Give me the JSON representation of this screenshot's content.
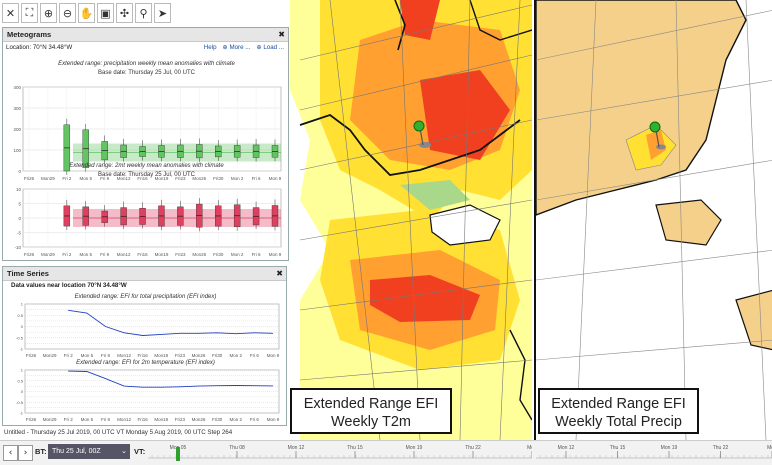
{
  "toolbar": {
    "icons": [
      "close-icon",
      "fullscreen-icon",
      "zoom-in-icon",
      "zoom-out-icon",
      "pan-hand-icon",
      "layers-icon",
      "move-icon",
      "pin-icon",
      "pointer-icon"
    ],
    "glyphs": [
      "✕",
      "⛶",
      "⊕",
      "⊖",
      "✋",
      "▣",
      "✣",
      "⚲",
      "➤"
    ]
  },
  "meteograms": {
    "title": "Meteograms",
    "location": "Location: 70°N 34.48°W",
    "help": "Help",
    "more": "More ...",
    "load": "Load ...",
    "chart1_title": "Extended range: precipitation weekly mean anomalies with climate",
    "chart1_base": "Base date: Thursday 25 Jul, 00 UTC",
    "chart2_title": "Extended range: 2mt weekly mean anomalies with climate",
    "chart2_base": "Base date: Thursday 25 Jul, 00 UTC",
    "x_labels": [
      "Fri26",
      "Mon29",
      "Fri 2",
      "Mon 5",
      "Fri 9",
      "Mon12",
      "Fri16",
      "Mon19",
      "Fri23",
      "Mon26",
      "Fri30",
      "Mon 2",
      "Fri 6",
      "Mon 9"
    ],
    "chart1_y": [
      "400",
      "300",
      "200",
      "100",
      "0"
    ],
    "chart2_y": [
      "10",
      "5",
      "0",
      "-5",
      "-10"
    ],
    "precip_box_heights": [
      0.55,
      0.45,
      0.22,
      0.15,
      0.12,
      0.14,
      0.15,
      0.16,
      0.13,
      0.14,
      0.15,
      0.14
    ],
    "temp_box_heights": [
      0.35,
      0.32,
      0.2,
      0.3,
      0.28,
      0.35,
      0.32,
      0.4,
      0.35,
      0.38,
      0.3,
      0.36
    ]
  },
  "timeseries": {
    "title": "Time Series",
    "location": "Data values near location 70°N 34.48°W",
    "chart1_title": "Extended range: EFI for total precipitation (EFI index)",
    "chart2_title": "Extended range: EFI for 2m temperature (EFI index)",
    "chart1_y": [
      "1",
      "0.75",
      "0.5",
      "0.25",
      "0",
      "-0.25",
      "-0.5",
      "-0.75",
      "-1"
    ],
    "chart2_y": [
      "1",
      "0.75",
      "0.5",
      "0.25",
      "0",
      "-0.25",
      "-0.5",
      "-0.75",
      "-1"
    ],
    "x_labels": [
      "Fri26",
      "Mon29",
      "Fri 2",
      "Mon 5",
      "Fri 9",
      "Mon12",
      "Fri16",
      "Mon19",
      "Fri23",
      "Mon26",
      "Fri30",
      "Mon 2",
      "Fri 6",
      "Mon 9"
    ],
    "precip_series": [
      0.72,
      0.6,
      0.0,
      -0.28,
      -0.4,
      -0.35,
      -0.3,
      -0.3,
      -0.28,
      -0.32,
      -0.28,
      -0.3
    ],
    "temp_series": [
      0.95,
      0.93,
      0.6,
      0.25,
      0.2,
      0.2,
      0.22,
      0.25,
      0.27,
      0.28,
      0.27,
      0.26
    ]
  },
  "status_line": "Untitled - Thursday 25 Jul 2019, 00 UTC VT Monday 5 Aug 2019, 00 UTC Step 264",
  "labels": {
    "left": [
      "Extended Range EFI",
      "Weekly T2m"
    ],
    "right": [
      "Extended Range EFI",
      "Weekly Total Precip"
    ]
  },
  "bottom": {
    "bt_label": "BT:",
    "bt_value": "Thu 25 Jul, 00Z",
    "vt_label": "VT:",
    "ticks_left": [
      "Mon 05",
      "Thu 08",
      "Mon 12",
      "Thu 15",
      "Mon 19",
      "Thu 22",
      "Mon"
    ],
    "ticks_right": [
      "Mon 12",
      "Thu 15",
      "Mon 19",
      "Thu 22",
      "Mon"
    ]
  },
  "colors": {
    "efi_light": "#ffff99",
    "efi_yellow": "#ffe033",
    "efi_orange": "#ffa030",
    "efi_red": "#f04020",
    "efi_green": "#aad88a",
    "land_tan": "#f4d08a",
    "sea": "#ffffff",
    "precip_green": "#62c462",
    "temp_red": "#e04060",
    "line_blue": "#2040c0"
  }
}
